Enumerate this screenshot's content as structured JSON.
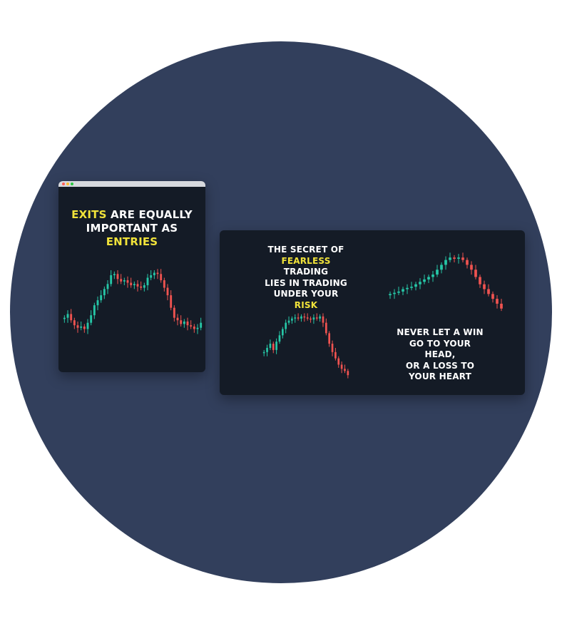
{
  "colors": {
    "background": "#ffffff",
    "circle": "#323f5c",
    "card": "#141b26",
    "highlight": "#f1e33a",
    "bullish": "#26c6a6",
    "bearish": "#ef5350"
  },
  "window_dots": [
    "#ff5f57",
    "#febc2e",
    "#28c840"
  ],
  "card_left": {
    "quote": {
      "hl": "EXITS",
      "line1_rest": " ARE EQUALLY",
      "line2": "IMPORTANT AS",
      "line3_hl": "ENTRIES"
    }
  },
  "card_right": {
    "quote_risk": {
      "line1": "THE SECRET OF",
      "line2_hl": "FEARLESS",
      "line2_rest": " TRADING",
      "line3": "LIES IN TRADING",
      "line4": "UNDER YOUR",
      "line5_hl": "RISK"
    },
    "quote_win": {
      "line1": "NEVER LET A WIN",
      "line2": "GO TO YOUR HEAD,",
      "line3": "OR A LOSS TO",
      "line4": "YOUR HEART"
    }
  },
  "charts": {
    "left": [
      52,
      55,
      50,
      46,
      44,
      45,
      43,
      48,
      54,
      62,
      66,
      70,
      75,
      79,
      86,
      87,
      83,
      81,
      82,
      80,
      78,
      79,
      77,
      76,
      78,
      84,
      86,
      88,
      87,
      82,
      76,
      70,
      60,
      52,
      50,
      47,
      49,
      46,
      45,
      43,
      44,
      48
    ],
    "right_bottom": [
      50,
      54,
      58,
      52,
      60,
      66,
      72,
      78,
      80,
      82,
      83,
      82,
      84,
      83,
      82,
      81,
      83,
      82,
      84,
      78,
      68,
      58,
      50,
      44,
      38,
      34,
      32,
      28
    ],
    "right_top": [
      50,
      51,
      52,
      54,
      55,
      56,
      58,
      60,
      62,
      64,
      66,
      70,
      74,
      78,
      80,
      79,
      80,
      78,
      74,
      70,
      64,
      58,
      54,
      50,
      46,
      42,
      38
    ]
  }
}
